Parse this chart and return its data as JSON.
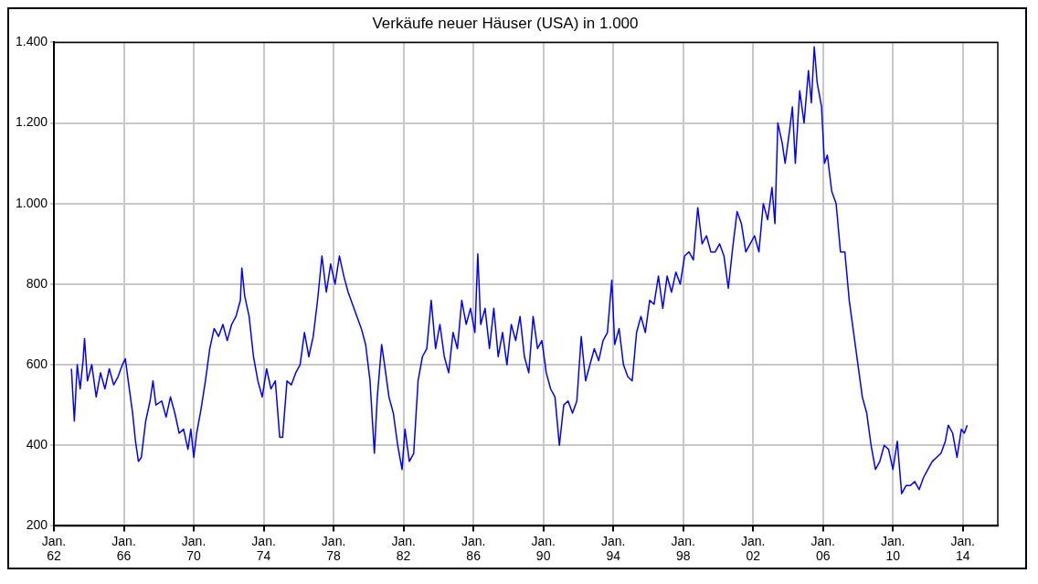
{
  "chart_data": {
    "type": "line",
    "title": "Verkäufe neuer Häuser (USA) in 1.000",
    "x": [
      "1963-01",
      "1963-03",
      "1963-05",
      "1963-07",
      "1963-09",
      "1963-10",
      "1963-12",
      "1964-03",
      "1964-06",
      "1964-09",
      "1964-12",
      "1965-03",
      "1965-06",
      "1965-09",
      "1965-12",
      "1966-02",
      "1966-04",
      "1966-07",
      "1966-09",
      "1966-11",
      "1967-01",
      "1967-04",
      "1967-07",
      "1967-09",
      "1967-11",
      "1968-03",
      "1968-06",
      "1968-09",
      "1968-12",
      "1969-03",
      "1969-06",
      "1969-09",
      "1969-11",
      "1970-01",
      "1970-03",
      "1970-06",
      "1970-09",
      "1970-12",
      "1971-03",
      "1971-06",
      "1971-09",
      "1971-12",
      "1972-03",
      "1972-06",
      "1972-09",
      "1972-10",
      "1972-12",
      "1973-03",
      "1973-06",
      "1973-09",
      "1973-12",
      "1974-03",
      "1974-06",
      "1974-09",
      "1974-12",
      "1975-02",
      "1975-05",
      "1975-08",
      "1975-11",
      "1976-02",
      "1976-05",
      "1976-08",
      "1976-11",
      "1977-02",
      "1977-05",
      "1977-08",
      "1977-11",
      "1978-02",
      "1978-05",
      "1978-08",
      "1978-11",
      "1979-02",
      "1979-05",
      "1979-08",
      "1979-11",
      "1980-02",
      "1980-05",
      "1980-07",
      "1980-10",
      "1980-12",
      "1981-03",
      "1981-06",
      "1981-09",
      "1981-12",
      "1982-02",
      "1982-05",
      "1982-08",
      "1982-11",
      "1983-02",
      "1983-05",
      "1983-08",
      "1983-11",
      "1984-02",
      "1984-05",
      "1984-08",
      "1984-11",
      "1985-02",
      "1985-05",
      "1985-08",
      "1985-11",
      "1986-02",
      "1986-04",
      "1986-06",
      "1986-09",
      "1986-12",
      "1987-03",
      "1987-06",
      "1987-09",
      "1987-12",
      "1988-03",
      "1988-06",
      "1988-09",
      "1988-12",
      "1989-03",
      "1989-06",
      "1989-09",
      "1989-12",
      "1990-03",
      "1990-06",
      "1990-09",
      "1990-12",
      "1991-03",
      "1991-06",
      "1991-09",
      "1991-12",
      "1992-03",
      "1992-06",
      "1992-09",
      "1992-12",
      "1993-03",
      "1993-06",
      "1993-09",
      "1993-12",
      "1994-02",
      "1994-05",
      "1994-08",
      "1994-11",
      "1995-02",
      "1995-05",
      "1995-08",
      "1995-11",
      "1996-02",
      "1996-05",
      "1996-08",
      "1996-11",
      "1997-02",
      "1997-05",
      "1997-08",
      "1997-11",
      "1998-02",
      "1998-05",
      "1998-08",
      "1998-11",
      "1999-02",
      "1999-05",
      "1999-08",
      "1999-11",
      "2000-02",
      "2000-05",
      "2000-08",
      "2000-11",
      "2001-02",
      "2001-05",
      "2001-08",
      "2001-11",
      "2002-02",
      "2002-05",
      "2002-08",
      "2002-11",
      "2003-02",
      "2003-04",
      "2003-06",
      "2003-09",
      "2003-11",
      "2004-02",
      "2004-04",
      "2004-06",
      "2004-09",
      "2004-12",
      "2005-03",
      "2005-05",
      "2005-07",
      "2005-09",
      "2005-12",
      "2006-02",
      "2006-04",
      "2006-07",
      "2006-10",
      "2007-01",
      "2007-04",
      "2007-07",
      "2007-10",
      "2008-01",
      "2008-04",
      "2008-07",
      "2008-10",
      "2009-01",
      "2009-04",
      "2009-07",
      "2009-10",
      "2010-01",
      "2010-04",
      "2010-07",
      "2010-10",
      "2011-01",
      "2011-04",
      "2011-07",
      "2011-10",
      "2012-01",
      "2012-04",
      "2012-07",
      "2012-10",
      "2013-01",
      "2013-03",
      "2013-06",
      "2013-09",
      "2013-12",
      "2014-02",
      "2014-04"
    ],
    "series": [
      {
        "color": "#0000ff",
        "values": [
          590,
          460,
          600,
          540,
          610,
          665,
          560,
          600,
          520,
          580,
          540,
          590,
          550,
          570,
          600,
          615,
          560,
          480,
          410,
          360,
          370,
          460,
          510,
          560,
          500,
          510,
          470,
          520,
          480,
          430,
          440,
          390,
          440,
          370,
          430,
          490,
          560,
          640,
          690,
          670,
          700,
          660,
          700,
          720,
          760,
          840,
          770,
          720,
          620,
          560,
          520,
          590,
          540,
          560,
          420,
          420,
          560,
          550,
          580,
          600,
          680,
          620,
          670,
          760,
          870,
          780,
          850,
          800,
          870,
          820,
          780,
          750,
          720,
          690,
          650,
          560,
          380,
          520,
          650,
          600,
          520,
          480,
          400,
          340,
          440,
          360,
          380,
          560,
          620,
          640,
          760,
          640,
          700,
          620,
          580,
          680,
          640,
          760,
          700,
          740,
          680,
          875,
          700,
          740,
          640,
          740,
          620,
          680,
          600,
          700,
          660,
          720,
          620,
          580,
          720,
          640,
          660,
          580,
          540,
          520,
          400,
          500,
          510,
          480,
          510,
          670,
          560,
          600,
          640,
          610,
          660,
          680,
          810,
          650,
          690,
          600,
          570,
          560,
          680,
          720,
          680,
          760,
          750,
          820,
          740,
          820,
          780,
          830,
          800,
          870,
          880,
          860,
          990,
          900,
          920,
          880,
          880,
          900,
          870,
          790,
          890,
          980,
          950,
          880,
          900,
          920,
          880,
          1000,
          960,
          1040,
          950,
          1200,
          1150,
          1100,
          1180,
          1240,
          1100,
          1280,
          1200,
          1330,
          1250,
          1389,
          1300,
          1240,
          1100,
          1120,
          1030,
          1000,
          880,
          880,
          760,
          680,
          600,
          520,
          480,
          400,
          340,
          360,
          400,
          390,
          340,
          410,
          280,
          300,
          300,
          310,
          290,
          320,
          340,
          360,
          370,
          380,
          410,
          450,
          430,
          370,
          440,
          430,
          450
        ]
      }
    ],
    "xlim": [
      "1962-01",
      "2016-01"
    ],
    "xticks": [
      {
        "value": "1962-01",
        "label": "Jan. 62"
      },
      {
        "value": "1966-01",
        "label": "Jan. 66"
      },
      {
        "value": "1970-01",
        "label": "Jan. 70"
      },
      {
        "value": "1974-01",
        "label": "Jan. 74"
      },
      {
        "value": "1978-01",
        "label": "Jan. 78"
      },
      {
        "value": "1982-01",
        "label": "Jan. 82"
      },
      {
        "value": "1986-01",
        "label": "Jan. 86"
      },
      {
        "value": "1990-01",
        "label": "Jan. 90"
      },
      {
        "value": "1994-01",
        "label": "Jan. 94"
      },
      {
        "value": "1998-01",
        "label": "Jan. 98"
      },
      {
        "value": "2002-01",
        "label": "Jan. 02"
      },
      {
        "value": "2006-01",
        "label": "Jan. 06"
      },
      {
        "value": "2010-01",
        "label": "Jan. 10"
      },
      {
        "value": "2014-01",
        "label": "Jan. 14"
      }
    ],
    "ylim": [
      200,
      1400
    ],
    "yticks": [
      200,
      400,
      600,
      800,
      {
        "value": 1000,
        "label": "1.000"
      },
      {
        "value": 1200,
        "label": "1.200"
      },
      {
        "value": 1400,
        "label": "1.400"
      }
    ],
    "grid": true,
    "legend": false,
    "marker": "none",
    "line_style": "solid"
  }
}
